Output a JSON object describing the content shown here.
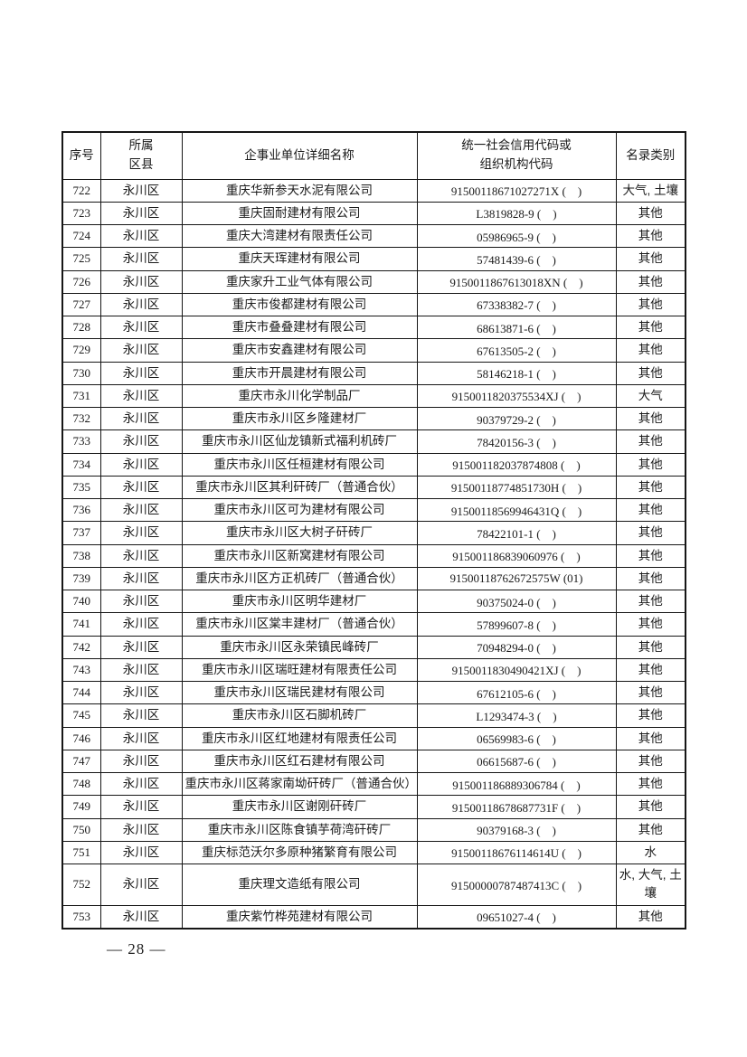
{
  "table": {
    "headers": {
      "no": "序号",
      "district": "所属\n区县",
      "name": "企事业单位详细名称",
      "code": "统一社会信用代码或\n组织机构代码",
      "category": "名录类别"
    },
    "rows": [
      {
        "no": "722",
        "district": "永川区",
        "name": "重庆华新参天水泥有限公司",
        "code": "91500118671027271X (　)",
        "category": "大气, 土壤"
      },
      {
        "no": "723",
        "district": "永川区",
        "name": "重庆固耐建材有限公司",
        "code": "L3819828-9 (　)",
        "category": "其他"
      },
      {
        "no": "724",
        "district": "永川区",
        "name": "重庆大湾建材有限责任公司",
        "code": "05986965-9 (　)",
        "category": "其他"
      },
      {
        "no": "725",
        "district": "永川区",
        "name": "重庆天珲建材有限公司",
        "code": "57481439-6 (　)",
        "category": "其他"
      },
      {
        "no": "726",
        "district": "永川区",
        "name": "重庆家升工业气体有限公司",
        "code": "9150011867613018XN (　)",
        "category": "其他"
      },
      {
        "no": "727",
        "district": "永川区",
        "name": "重庆市俊都建材有限公司",
        "code": "67338382-7 (　)",
        "category": "其他"
      },
      {
        "no": "728",
        "district": "永川区",
        "name": "重庆市叠叠建材有限公司",
        "code": "68613871-6 (　)",
        "category": "其他"
      },
      {
        "no": "729",
        "district": "永川区",
        "name": "重庆市安鑫建材有限公司",
        "code": "67613505-2 (　)",
        "category": "其他"
      },
      {
        "no": "730",
        "district": "永川区",
        "name": "重庆市开晨建材有限公司",
        "code": "58146218-1 (　)",
        "category": "其他"
      },
      {
        "no": "731",
        "district": "永川区",
        "name": "重庆市永川化学制品厂",
        "code": "9150011820375534XJ (　)",
        "category": "大气"
      },
      {
        "no": "732",
        "district": "永川区",
        "name": "重庆市永川区乡隆建材厂",
        "code": "90379729-2 (　)",
        "category": "其他"
      },
      {
        "no": "733",
        "district": "永川区",
        "name": "重庆市永川区仙龙镇新式福利机砖厂",
        "code": "78420156-3 (　)",
        "category": "其他"
      },
      {
        "no": "734",
        "district": "永川区",
        "name": "重庆市永川区任桓建材有限公司",
        "code": "915001182037874808 (　)",
        "category": "其他"
      },
      {
        "no": "735",
        "district": "永川区",
        "name": "重庆市永川区其利矸砖厂（普通合伙）",
        "code": "91500118774851730H (　)",
        "category": "其他"
      },
      {
        "no": "736",
        "district": "永川区",
        "name": "重庆市永川区可为建材有限公司",
        "code": "91500118569946431Q (　)",
        "category": "其他"
      },
      {
        "no": "737",
        "district": "永川区",
        "name": "重庆市永川区大树子矸砖厂",
        "code": "78422101-1 (　)",
        "category": "其他"
      },
      {
        "no": "738",
        "district": "永川区",
        "name": "重庆市永川区新窝建材有限公司",
        "code": "915001186839060976 (　)",
        "category": "其他"
      },
      {
        "no": "739",
        "district": "永川区",
        "name": "重庆市永川区方正机砖厂（普通合伙）",
        "code": "91500118762672575W (01)",
        "category": "其他"
      },
      {
        "no": "740",
        "district": "永川区",
        "name": "重庆市永川区明华建材厂",
        "code": "90375024-0 (　)",
        "category": "其他"
      },
      {
        "no": "741",
        "district": "永川区",
        "name": "重庆市永川区棠丰建材厂（普通合伙）",
        "code": "57899607-8 (　)",
        "category": "其他"
      },
      {
        "no": "742",
        "district": "永川区",
        "name": "重庆市永川区永荣镇民峰砖厂",
        "code": "70948294-0 (　)",
        "category": "其他"
      },
      {
        "no": "743",
        "district": "永川区",
        "name": "重庆市永川区瑞旺建材有限责任公司",
        "code": "9150011830490421XJ (　)",
        "category": "其他"
      },
      {
        "no": "744",
        "district": "永川区",
        "name": "重庆市永川区瑞民建材有限公司",
        "code": "67612105-6 (　)",
        "category": "其他"
      },
      {
        "no": "745",
        "district": "永川区",
        "name": "重庆市永川区石脚机砖厂",
        "code": "L1293474-3 (　)",
        "category": "其他"
      },
      {
        "no": "746",
        "district": "永川区",
        "name": "重庆市永川区红地建材有限责任公司",
        "code": "06569983-6 (　)",
        "category": "其他"
      },
      {
        "no": "747",
        "district": "永川区",
        "name": "重庆市永川区红石建材有限公司",
        "code": "06615687-6 (　)",
        "category": "其他"
      },
      {
        "no": "748",
        "district": "永川区",
        "name": "重庆市永川区蒋家南坳矸砖厂（普通合伙）",
        "code": "915001186889306784 (　)",
        "category": "其他"
      },
      {
        "no": "749",
        "district": "永川区",
        "name": "重庆市永川区谢刚矸砖厂",
        "code": "91500118678687731F (　)",
        "category": "其他"
      },
      {
        "no": "750",
        "district": "永川区",
        "name": "重庆市永川区陈食镇芋荷湾矸砖厂",
        "code": "90379168-3 (　)",
        "category": "其他"
      },
      {
        "no": "751",
        "district": "永川区",
        "name": "重庆标范沃尔多原种猪繁育有限公司",
        "code": "91500118676114614U (　)",
        "category": "水"
      },
      {
        "no": "752",
        "district": "永川区",
        "name": "重庆理文造纸有限公司",
        "code": "91500000787487413C (　)",
        "category": "水, 大气, 土壤"
      },
      {
        "no": "753",
        "district": "永川区",
        "name": "重庆紫竹桦苑建材有限公司",
        "code": "09651027-4 (　)",
        "category": "其他"
      }
    ]
  },
  "footer": {
    "page_number": "— 28 —"
  }
}
